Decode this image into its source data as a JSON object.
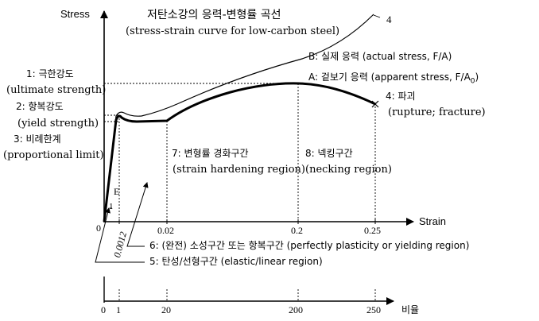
{
  "title": {
    "korean": "저탄소강의 응력-변형률 곡선",
    "english": "(stress-strain curve for low-carbon steel)"
  },
  "axes": {
    "y_label": "Stress",
    "x_label": "Strain",
    "origin": "0",
    "x_ticks": [
      "0.0012",
      "0.02",
      "0.2",
      "0.25"
    ],
    "ratio_label": "비율",
    "ratio_ticks": [
      "0",
      "1",
      "20",
      "200",
      "250"
    ]
  },
  "points": {
    "ultimate_kr": "1: 극한강도",
    "ultimate_en": "(ultimate strength)",
    "yield_kr": "2: 항복강도",
    "yield_en": "(yield strength)",
    "proportional_kr": "3: 비례한계",
    "proportional_en": "(proportional limit)",
    "fracture_kr": "4: 파괴",
    "fracture_en": "(rupture; fracture)",
    "fracture_top": "4"
  },
  "curves": {
    "actual": "B: 실제 응력 (actual stress, F/A)",
    "apparent_prefix": "A: 겉보기 응력 (apparent stress, F/A",
    "apparent_sub": "0",
    "apparent_suffix": ")"
  },
  "regions": {
    "hardening_kr": "7: 변형률 경화구간",
    "hardening_en": "(strain hardening region)",
    "necking_kr": "8: 넥킹구간",
    "necking_en": "(necking region)",
    "plastic": "6: (완전) 소성구간 또는 항복구간 (perfectly plasticity or yielding region)",
    "elastic": "5: 탄성/선형구간 (elastic/linear region)"
  },
  "markers": {
    "E": "E",
    "slope": "1"
  }
}
